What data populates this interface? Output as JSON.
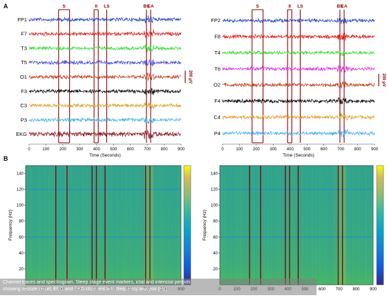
{
  "figure": {
    "panel_a_label": "A",
    "panel_b_label": "B",
    "caption": {
      "line1": "Channel traces and spectrogram, Sleep stage event markers, ictal and interictal periods",
      "line2": "showing seizure onset, EEG and EKG channels with frequency analysis (Hz)"
    }
  },
  "chart_data": [
    {
      "type": "line",
      "id": "A-left",
      "channels": [
        "FP1",
        "F7",
        "T3",
        "T5",
        "O1",
        "F3",
        "C3",
        "P3",
        "EKG"
      ],
      "channel_colors": [
        "#1f3fc8",
        "#e81515",
        "#33dd33",
        "#4646e6",
        "#c23b1e",
        "#000000",
        "#e0a020",
        "#3db0e8",
        "#8b1020"
      ],
      "xlabel": "Time (Seconds)",
      "xlim": [
        0,
        900
      ],
      "xticks": [
        "0",
        "100",
        "200",
        "300",
        "400",
        "500",
        "600",
        "700",
        "800",
        "900"
      ],
      "markers": [
        {
          "label": "S",
          "start": 175,
          "end": 240
        },
        {
          "label": "II",
          "start": 385,
          "end": 410
        },
        {
          "label": "LS",
          "start": 460,
          "end": 460
        },
        {
          "label": "BS",
          "start": 695,
          "end": 695
        },
        {
          "label": "CA",
          "start": 720,
          "end": 720
        }
      ],
      "scale_bar": {
        "label": "200 μV"
      }
    },
    {
      "type": "line",
      "id": "A-right",
      "channels": [
        "FP2",
        "F8",
        "T4",
        "T6",
        "O2",
        "F4",
        "C4",
        "P4"
      ],
      "channel_colors": [
        "#1f3fc8",
        "#e81515",
        "#33dd33",
        "#e020e0",
        "#c23b1e",
        "#000000",
        "#e0a020",
        "#3db0e8"
      ],
      "xlabel": "Time (Seconds)",
      "xlim": [
        0,
        900
      ],
      "xticks": [
        "0",
        "100",
        "200",
        "300",
        "400",
        "500",
        "600",
        "700",
        "800",
        "900"
      ],
      "markers": [
        {
          "label": "S",
          "start": 175,
          "end": 240
        },
        {
          "label": "II",
          "start": 385,
          "end": 410
        },
        {
          "label": "LS",
          "start": 460,
          "end": 460
        },
        {
          "label": "BS",
          "start": 695,
          "end": 695
        },
        {
          "label": "CA",
          "start": 720,
          "end": 720
        }
      ],
      "scale_bar": {
        "label": "200 μV"
      }
    },
    {
      "type": "heatmap",
      "id": "B-left",
      "ylabel": "Frequency (Hz)",
      "xlim": [
        0,
        900
      ],
      "ylim": [
        0,
        150
      ],
      "xticks": [
        "0",
        "100",
        "200",
        "300",
        "400",
        "500",
        "600",
        "700",
        "800",
        "900"
      ],
      "yticks": [
        "20",
        "40",
        "60",
        "80",
        "100",
        "120",
        "140"
      ],
      "line_noise_bands_hz": [
        60,
        120
      ],
      "marker_lines": [
        175,
        240,
        385,
        410,
        460,
        695,
        720
      ],
      "colormap": "parula"
    },
    {
      "type": "heatmap",
      "id": "B-right",
      "ylabel": "Frequency (Hz)",
      "xlim": [
        0,
        900
      ],
      "ylim": [
        0,
        150
      ],
      "xticks": [
        "0",
        "100",
        "200",
        "300",
        "400",
        "500",
        "600",
        "700",
        "800",
        "900"
      ],
      "yticks": [
        "20",
        "40",
        "60",
        "80",
        "100",
        "120",
        "140"
      ],
      "line_noise_bands_hz": [
        60,
        120
      ],
      "marker_lines": [
        175,
        240,
        385,
        410,
        460,
        695,
        720
      ],
      "colormap": "parula"
    }
  ]
}
